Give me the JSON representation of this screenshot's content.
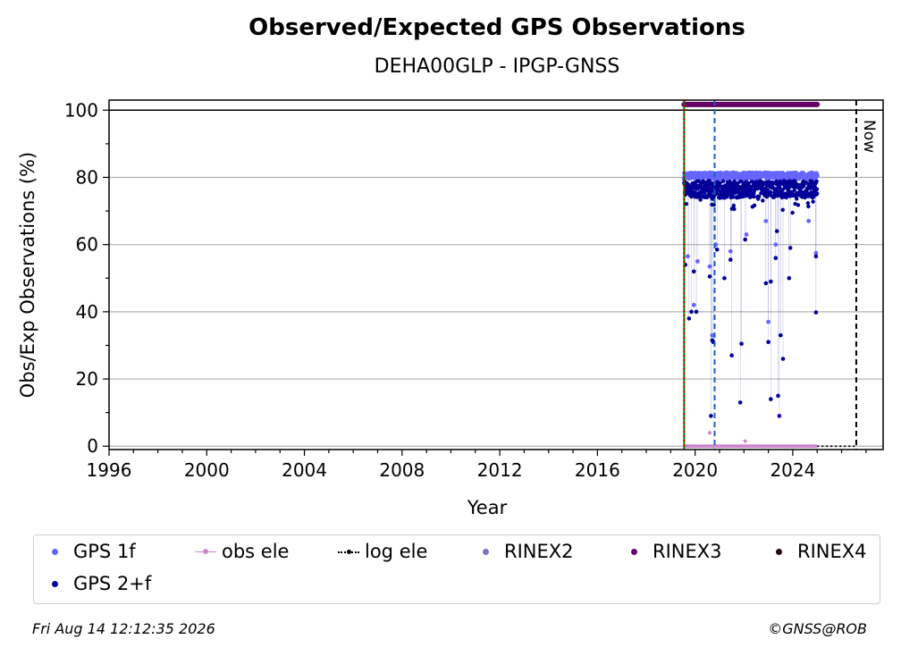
{
  "chart_data": {
    "type": "scatter",
    "title": "Observed/Expected GPS Observations",
    "subtitle": "DEHA00GLP - IPGP-GNSS",
    "xlabel": "Year",
    "ylabel": "Obs/Exp Observations (%)",
    "xlim": [
      1996,
      2027.7
    ],
    "ylim": [
      -1,
      103
    ],
    "x_ticks": [
      1996,
      2000,
      2004,
      2008,
      2012,
      2016,
      2020,
      2024
    ],
    "y_ticks": [
      0,
      20,
      40,
      60,
      80,
      100
    ],
    "grid": "horizontal",
    "now_label": "Now",
    "now_year": 2026.6,
    "vlines": [
      {
        "x": 2019.55,
        "color": "#008000",
        "style": "solid"
      },
      {
        "x": 2019.55,
        "color": "#cc0000",
        "style": "dotted"
      },
      {
        "x": 2020.8,
        "color": "#1f5fbf",
        "style": "dashed"
      }
    ],
    "data_range": [
      2019.55,
      2025.0
    ],
    "series": [
      {
        "name": "GPS 1f",
        "color": "#6666ff",
        "base": 80.5,
        "outliers": [
          [
            2019.7,
            56.5
          ],
          [
            2019.95,
            42
          ],
          [
            2020.1,
            55
          ],
          [
            2020.6,
            53.5
          ],
          [
            2020.7,
            33
          ],
          [
            2020.85,
            60
          ],
          [
            2021.45,
            58
          ],
          [
            2022.1,
            63
          ],
          [
            2022.9,
            67
          ],
          [
            2023.0,
            37
          ],
          [
            2023.3,
            60
          ],
          [
            2024.65,
            67
          ],
          [
            2024.95,
            57.5
          ]
        ]
      },
      {
        "name": "GPS 2+f",
        "color": "#000099",
        "base": 76.5,
        "outliers": [
          [
            2019.6,
            54
          ],
          [
            2019.75,
            38
          ],
          [
            2019.85,
            40
          ],
          [
            2019.95,
            52
          ],
          [
            2020.05,
            40
          ],
          [
            2020.6,
            50.5
          ],
          [
            2020.65,
            9
          ],
          [
            2020.7,
            31.5
          ],
          [
            2020.75,
            31
          ],
          [
            2020.9,
            58.5
          ],
          [
            2021.2,
            50
          ],
          [
            2021.45,
            55.5
          ],
          [
            2021.5,
            27
          ],
          [
            2021.85,
            13
          ],
          [
            2021.9,
            30.5
          ],
          [
            2022.05,
            61.5
          ],
          [
            2022.9,
            48.5
          ],
          [
            2023.0,
            31
          ],
          [
            2023.1,
            14
          ],
          [
            2023.1,
            49
          ],
          [
            2023.3,
            56
          ],
          [
            2023.35,
            64
          ],
          [
            2023.4,
            15
          ],
          [
            2023.45,
            9
          ],
          [
            2023.5,
            33
          ],
          [
            2023.6,
            26
          ],
          [
            2023.85,
            50
          ],
          [
            2023.9,
            59
          ],
          [
            2024.95,
            56.5
          ],
          [
            2024.95,
            39.8
          ]
        ]
      },
      {
        "name": "obs ele",
        "color": "#cc88cc",
        "base": 0,
        "outliers": [
          [
            2020.6,
            4
          ],
          [
            2022.05,
            1.5
          ]
        ]
      },
      {
        "name": "log ele",
        "color": "#000000"
      },
      {
        "name": "RINEX2",
        "color": "#7777bb"
      },
      {
        "name": "RINEX3",
        "color": "#660066",
        "base": 101.7
      },
      {
        "name": "RINEX4",
        "color": "#220011"
      }
    ]
  },
  "legend": {
    "gps1f": "GPS 1f",
    "obs_ele": "obs ele",
    "log_ele": "log ele",
    "rinex2": "RINEX2",
    "rinex3": "RINEX3",
    "rinex4": "RINEX4",
    "gps2f": "GPS 2+f"
  },
  "footer": {
    "timestamp": "Fri Aug 14 12:12:35 2026",
    "credit": "©GNSS@ROB"
  }
}
